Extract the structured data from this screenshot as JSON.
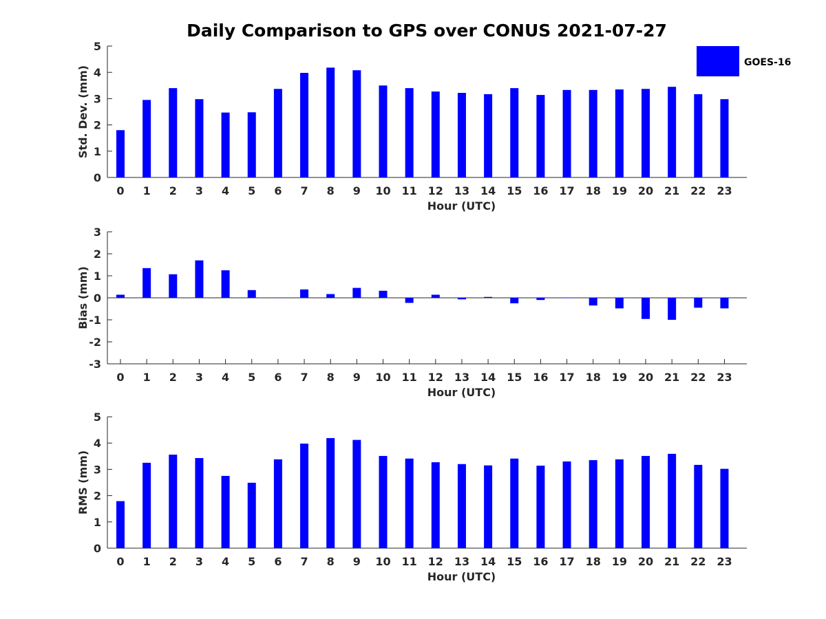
{
  "chart_data": {
    "type": "bar",
    "title": "Daily Comparison to GPS over CONUS 2021-07-27",
    "legend": {
      "label": "GOES-16",
      "color": "#0000ff",
      "placement": "top-right"
    },
    "panels": [
      {
        "key": "stddev",
        "ylabel": "Std. Dev. (mm)",
        "xlabel": "Hour (UTC)",
        "ylim": [
          0,
          5
        ],
        "yticks": [
          "0",
          "1",
          "2",
          "3",
          "4",
          "5"
        ],
        "categories": [
          "0",
          "1",
          "2",
          "3",
          "4",
          "5",
          "6",
          "7",
          "8",
          "9",
          "10",
          "11",
          "12",
          "13",
          "14",
          "15",
          "16",
          "17",
          "18",
          "19",
          "20",
          "21",
          "22",
          "23"
        ],
        "series": [
          {
            "name": "GOES-16",
            "values": [
              1.8,
              2.95,
              3.4,
              2.98,
              2.47,
              2.48,
              3.37,
              3.98,
              4.18,
              4.08,
              3.5,
              3.4,
              3.27,
              3.22,
              3.17,
              3.4,
              3.14,
              3.33,
              3.33,
              3.35,
              3.37,
              3.45,
              3.17,
              2.98
            ]
          }
        ]
      },
      {
        "key": "bias",
        "ylabel": "Bias (mm)",
        "xlabel": "Hour (UTC)",
        "ylim": [
          -3,
          3
        ],
        "yticks": [
          "-3",
          "-2",
          "-1",
          "0",
          "1",
          "2",
          "3"
        ],
        "categories": [
          "0",
          "1",
          "2",
          "3",
          "4",
          "5",
          "6",
          "7",
          "8",
          "9",
          "10",
          "11",
          "12",
          "13",
          "14",
          "15",
          "16",
          "17",
          "18",
          "19",
          "20",
          "21",
          "22",
          "23"
        ],
        "series": [
          {
            "name": "GOES-16",
            "values": [
              0.14,
              1.35,
              1.07,
              1.7,
              1.25,
              0.35,
              0.01,
              0.38,
              0.17,
              0.45,
              0.32,
              -0.23,
              0.14,
              -0.07,
              0.04,
              -0.25,
              -0.1,
              -0.01,
              -0.35,
              -0.48,
              -0.96,
              -1.0,
              -0.45,
              -0.48
            ]
          }
        ]
      },
      {
        "key": "rms",
        "ylabel": "RMS (mm)",
        "xlabel": "Hour (UTC)",
        "ylim": [
          0,
          5
        ],
        "yticks": [
          "0",
          "1",
          "2",
          "3",
          "4",
          "5"
        ],
        "categories": [
          "0",
          "1",
          "2",
          "3",
          "4",
          "5",
          "6",
          "7",
          "8",
          "9",
          "10",
          "11",
          "12",
          "13",
          "14",
          "15",
          "16",
          "17",
          "18",
          "19",
          "20",
          "21",
          "22",
          "23"
        ],
        "series": [
          {
            "name": "GOES-16",
            "values": [
              1.79,
              3.25,
              3.56,
              3.43,
              2.75,
              2.49,
              3.38,
              3.98,
              4.19,
              4.12,
              3.51,
              3.41,
              3.27,
              3.2,
              3.15,
              3.41,
              3.14,
              3.3,
              3.35,
              3.38,
              3.51,
              3.59,
              3.17,
              3.02
            ]
          }
        ]
      }
    ]
  }
}
